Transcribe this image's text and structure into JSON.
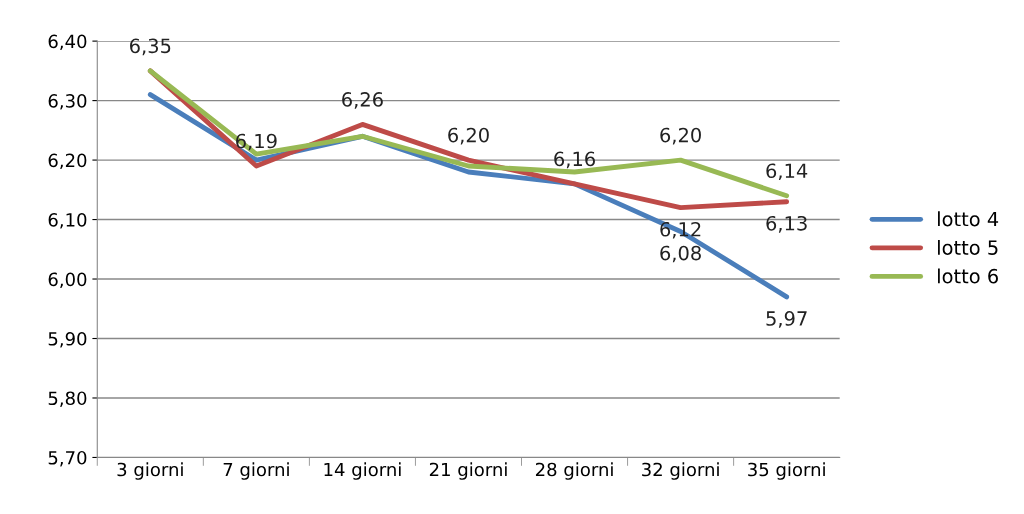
{
  "chart_data": {
    "type": "line",
    "categories": [
      "3 giorni",
      "7 giorni",
      "14 giorni",
      "21 giorni",
      "28 giorni",
      "32 giorni",
      "35 giorni"
    ],
    "series": [
      {
        "name": "lotto 4",
        "color": "#4a7ebb",
        "values": [
          6.31,
          6.2,
          6.24,
          6.18,
          6.16,
          6.08,
          5.97
        ],
        "value_labels": [
          null,
          null,
          null,
          null,
          null,
          "6,08",
          "5,97"
        ]
      },
      {
        "name": "lotto 5",
        "color": "#be4b48",
        "values": [
          6.35,
          6.19,
          6.26,
          6.2,
          6.16,
          6.12,
          6.13
        ],
        "value_labels": [
          "6,35",
          "6,19",
          "6,26",
          "6,20",
          "6,16",
          "6,12",
          "6,13"
        ]
      },
      {
        "name": "lotto 6",
        "color": "#98b954",
        "values": [
          6.35,
          6.21,
          6.24,
          6.19,
          6.18,
          6.2,
          6.14
        ],
        "value_labels": [
          null,
          null,
          null,
          null,
          null,
          "6,20",
          "6,14"
        ]
      }
    ],
    "ylim": [
      5.7,
      6.4
    ],
    "yticks": [
      {
        "value": 5.7,
        "label": "5,70"
      },
      {
        "value": 5.8,
        "label": "5,80"
      },
      {
        "value": 5.9,
        "label": "5,90"
      },
      {
        "value": 6.0,
        "label": "6,00"
      },
      {
        "value": 6.1,
        "label": "6,10"
      },
      {
        "value": 6.2,
        "label": "6,20"
      },
      {
        "value": 6.3,
        "label": "6,30"
      },
      {
        "value": 6.4,
        "label": "6,40"
      }
    ],
    "grid": "y",
    "legend": "right",
    "marker": "none",
    "line_style": "solid"
  }
}
